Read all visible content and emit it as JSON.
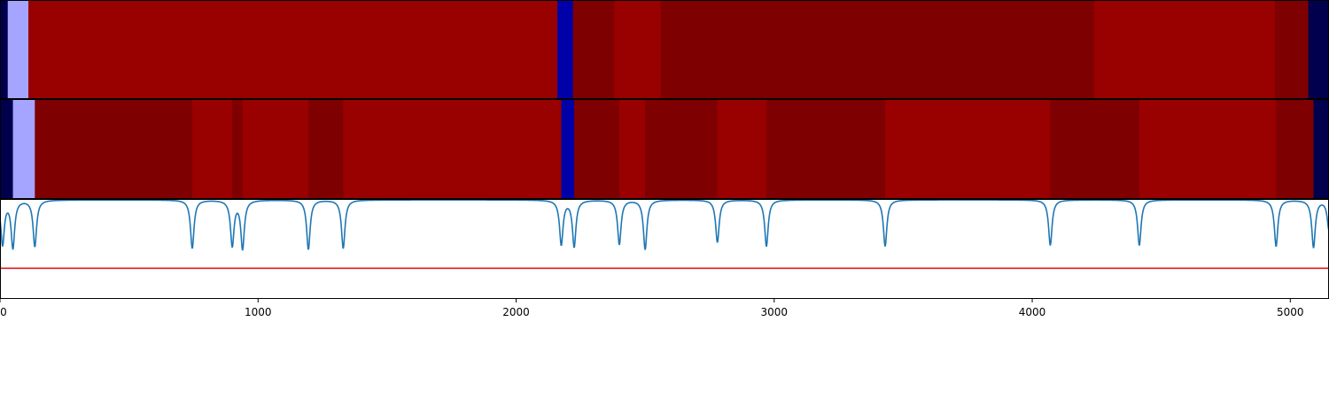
{
  "chart_data": [
    {
      "type": "heatmap",
      "title": "",
      "xlim": [
        0,
        5150
      ],
      "segments": [
        {
          "start": 0,
          "end": 30,
          "color": "#00004d"
        },
        {
          "start": 30,
          "end": 110,
          "color": "#a5a5ff"
        },
        {
          "start": 110,
          "end": 2160,
          "color": "#990000"
        },
        {
          "start": 2160,
          "end": 2220,
          "color": "#0000a8"
        },
        {
          "start": 2220,
          "end": 2380,
          "color": "#7f0000"
        },
        {
          "start": 2380,
          "end": 2560,
          "color": "#990000"
        },
        {
          "start": 2560,
          "end": 4240,
          "color": "#7f0000"
        },
        {
          "start": 4240,
          "end": 4940,
          "color": "#990000"
        },
        {
          "start": 4940,
          "end": 5070,
          "color": "#7f0000"
        },
        {
          "start": 5070,
          "end": 5150,
          "color": "#00004d"
        }
      ]
    },
    {
      "type": "heatmap",
      "title": "",
      "xlim": [
        0,
        5150
      ],
      "segments": [
        {
          "start": 0,
          "end": 50,
          "color": "#00004d"
        },
        {
          "start": 50,
          "end": 135,
          "color": "#a5a5ff"
        },
        {
          "start": 135,
          "end": 745,
          "color": "#7f0000"
        },
        {
          "start": 745,
          "end": 900,
          "color": "#990000"
        },
        {
          "start": 900,
          "end": 940,
          "color": "#7f0000"
        },
        {
          "start": 940,
          "end": 1195,
          "color": "#990000"
        },
        {
          "start": 1195,
          "end": 1330,
          "color": "#7f0000"
        },
        {
          "start": 1330,
          "end": 2175,
          "color": "#990000"
        },
        {
          "start": 2175,
          "end": 2225,
          "color": "#0000a8"
        },
        {
          "start": 2225,
          "end": 2400,
          "color": "#7f0000"
        },
        {
          "start": 2400,
          "end": 2500,
          "color": "#990000"
        },
        {
          "start": 2500,
          "end": 2780,
          "color": "#7f0000"
        },
        {
          "start": 2780,
          "end": 2970,
          "color": "#990000"
        },
        {
          "start": 2970,
          "end": 3430,
          "color": "#7f0000"
        },
        {
          "start": 3430,
          "end": 4070,
          "color": "#990000"
        },
        {
          "start": 4070,
          "end": 4415,
          "color": "#7f0000"
        },
        {
          "start": 4415,
          "end": 4945,
          "color": "#990000"
        },
        {
          "start": 4945,
          "end": 5090,
          "color": "#7f0000"
        },
        {
          "start": 5090,
          "end": 5150,
          "color": "#00004d"
        }
      ]
    },
    {
      "type": "line",
      "title": "",
      "xlabel": "",
      "ylabel": "",
      "xlim": [
        0,
        5150
      ],
      "ylim": [
        0,
        1
      ],
      "x_ticks": [
        0,
        1000,
        2000,
        3000,
        4000,
        5000
      ],
      "x_tick_labels": [
        "0",
        "1000",
        "2000",
        "3000",
        "4000",
        "5000"
      ],
      "grid": false,
      "baseline": 1.0,
      "series": [
        {
          "color": "#1f77b4",
          "dips": [
            {
              "x": 10,
              "depth": 0.45
            },
            {
              "x": 50,
              "depth": 0.48
            },
            {
              "x": 135,
              "depth": 0.47
            },
            {
              "x": 745,
              "depth": 0.49
            },
            {
              "x": 900,
              "depth": 0.46
            },
            {
              "x": 940,
              "depth": 0.49
            },
            {
              "x": 1195,
              "depth": 0.5
            },
            {
              "x": 1330,
              "depth": 0.49
            },
            {
              "x": 2175,
              "depth": 0.45
            },
            {
              "x": 2225,
              "depth": 0.47
            },
            {
              "x": 2400,
              "depth": 0.45
            },
            {
              "x": 2500,
              "depth": 0.5
            },
            {
              "x": 2780,
              "depth": 0.43
            },
            {
              "x": 2970,
              "depth": 0.47
            },
            {
              "x": 3430,
              "depth": 0.47
            },
            {
              "x": 4070,
              "depth": 0.46
            },
            {
              "x": 4415,
              "depth": 0.46
            },
            {
              "x": 4945,
              "depth": 0.47
            },
            {
              "x": 5090,
              "depth": 0.48
            },
            {
              "x": 5150,
              "depth": 0.3
            }
          ]
        },
        {
          "color": "#e31a1c",
          "threshold": 0.31
        }
      ]
    }
  ]
}
